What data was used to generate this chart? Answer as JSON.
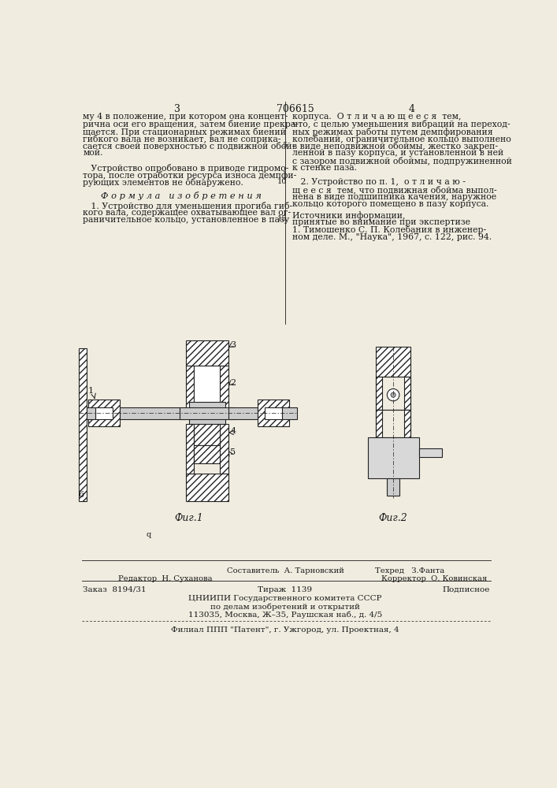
{
  "page_color": "#f0ece0",
  "text_color": "#1a1a1a",
  "title_page_num_left": "3",
  "title_patent_num": "706615",
  "title_page_num_right": "4",
  "col_left_text": [
    "му 4 в положение, при котором она концент-",
    "рична оси его вращения, затем биение прекра-",
    "щается. При стационарных режимах биений",
    "гибкого вала не возникает, вал не соприка-",
    "сается своей поверхностью с подвижной обой-",
    "мой.",
    "",
    "   Устройство опробовано в приводе гидромо-",
    "тора, после отработки ресурса износа демпфи-",
    "рующих элементов не обнаружено."
  ],
  "formula_title": "Ф о р м у л а   и з о б р е т е н и я",
  "formula_text": [
    "   1. Устройство для уменьшения прогиба гиб-",
    "кого вала, содержащее охватывающее вал ог-",
    "раничительное кольцо, установленное в пазу"
  ],
  "col_right_text": [
    "корпуса.  О т л и ч а ю щ е е с я  тем,",
    "что, с целью уменьшения вибраций на переход-",
    "ных режимах работы путем демпфирования",
    "колебаний, ограничительное кольцо выполнено",
    "в виде неподвижной обоймы, жестко закреп-",
    "ленной в пазу корпуса, и установленной в ней",
    "с зазором подвижной обоймы, подпружиненной",
    "к стенке паза.",
    "",
    "   2. Устройство по п. 1,  о т л и ч а ю -",
    "щ е е с я  тем, что подвижная обойма выпол-",
    "нена в виде подшипника качения, наружное",
    "кольцо которого помещено в пазу корпуса."
  ],
  "sources_title": "Источники информации,",
  "sources_subtitle": "принятые во внимание при экспертизе",
  "source1": "1. Тимошенко С. П. Колебания в инженер-",
  "source1b": "ном деле. М., \"Наука\", 1967, с. 122, рис. 94.",
  "fig1_caption": "Фиг.1",
  "fig2_caption": "Фиг.2",
  "editor_line": "Редактор  Н. Суханова",
  "composer_line": "Составитель  А. Тарновский",
  "techred_line": "Техред   З.Фанта",
  "corrector_line": "Корректор  О. Ковинская",
  "order_line": "Заказ  8194/31",
  "tirazh_line": "Тираж  1139",
  "podpisnoe_line": "Подписное",
  "cniipи_line1": "ЦНИИПИ Государственного комитета СССР",
  "cniipи_line2": "по делам изобретений и открытий",
  "cniipи_line3": "113035, Москва, Ж–35, Раушская наб., д. 4/5",
  "filial_line": "Филиал ППП \"Патент\", г. Ужгород, ул. Проектная, 4",
  "line_numbers": [
    5,
    10,
    15
  ],
  "line_number_rows": [
    4,
    9,
    14
  ]
}
